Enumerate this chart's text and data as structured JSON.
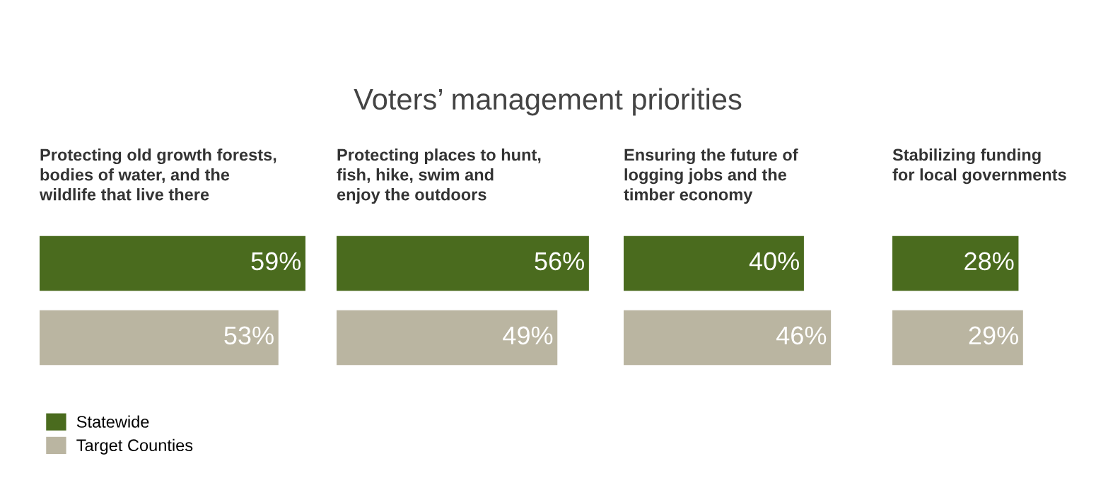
{
  "chart_data": [
    {
      "type": "bar",
      "orientation": "horizontal",
      "subtitle": "Protecting old growth forests,\nbodies of water, and the\nwildlife that live there",
      "categories": [
        null
      ],
      "legend": "bottom left",
      "series": [
        {
          "name": "Statewide",
          "color": "#4a6b1e",
          "values": [
            59
          ],
          "value_labels": [
            "59%"
          ]
        },
        {
          "name": "Target Counties",
          "color": "#bab5a1",
          "values": [
            53
          ],
          "value_labels": [
            "53%"
          ]
        }
      ]
    },
    {
      "type": "bar",
      "orientation": "horizontal",
      "title": "Voters’ management priorities",
      "subtitle": "Protecting places to hunt,\nfish, hike, swim and\nenjoy the outdoors",
      "categories": [
        null
      ],
      "series": [
        {
          "color": "#4a6b1e",
          "values": [
            56
          ],
          "value_labels": [
            "56%"
          ]
        },
        {
          "color": "#bab5a1",
          "values": [
            49
          ],
          "value_labels": [
            "49%"
          ]
        }
      ]
    },
    {
      "type": "bar",
      "orientation": "horizontal",
      "subtitle": "Ensuring the future of\nlogging jobs and the\ntimber economy",
      "categories": [
        null
      ],
      "series": [
        {
          "color": "#4a6b1e",
          "values": [
            40
          ],
          "value_labels": [
            "40%"
          ]
        },
        {
          "color": "#bab5a1",
          "values": [
            46
          ],
          "value_labels": [
            "46%"
          ]
        }
      ]
    },
    {
      "type": "bar",
      "orientation": "horizontal",
      "subtitle": "Stabilizing funding\nfor local governments",
      "categories": [
        null
      ],
      "series": [
        {
          "color": "#4a6b1e",
          "values": [
            28
          ],
          "value_labels": [
            "28%"
          ]
        },
        {
          "color": "#bab5a1",
          "values": [
            29
          ],
          "value_labels": [
            "29%"
          ]
        }
      ]
    }
  ]
}
